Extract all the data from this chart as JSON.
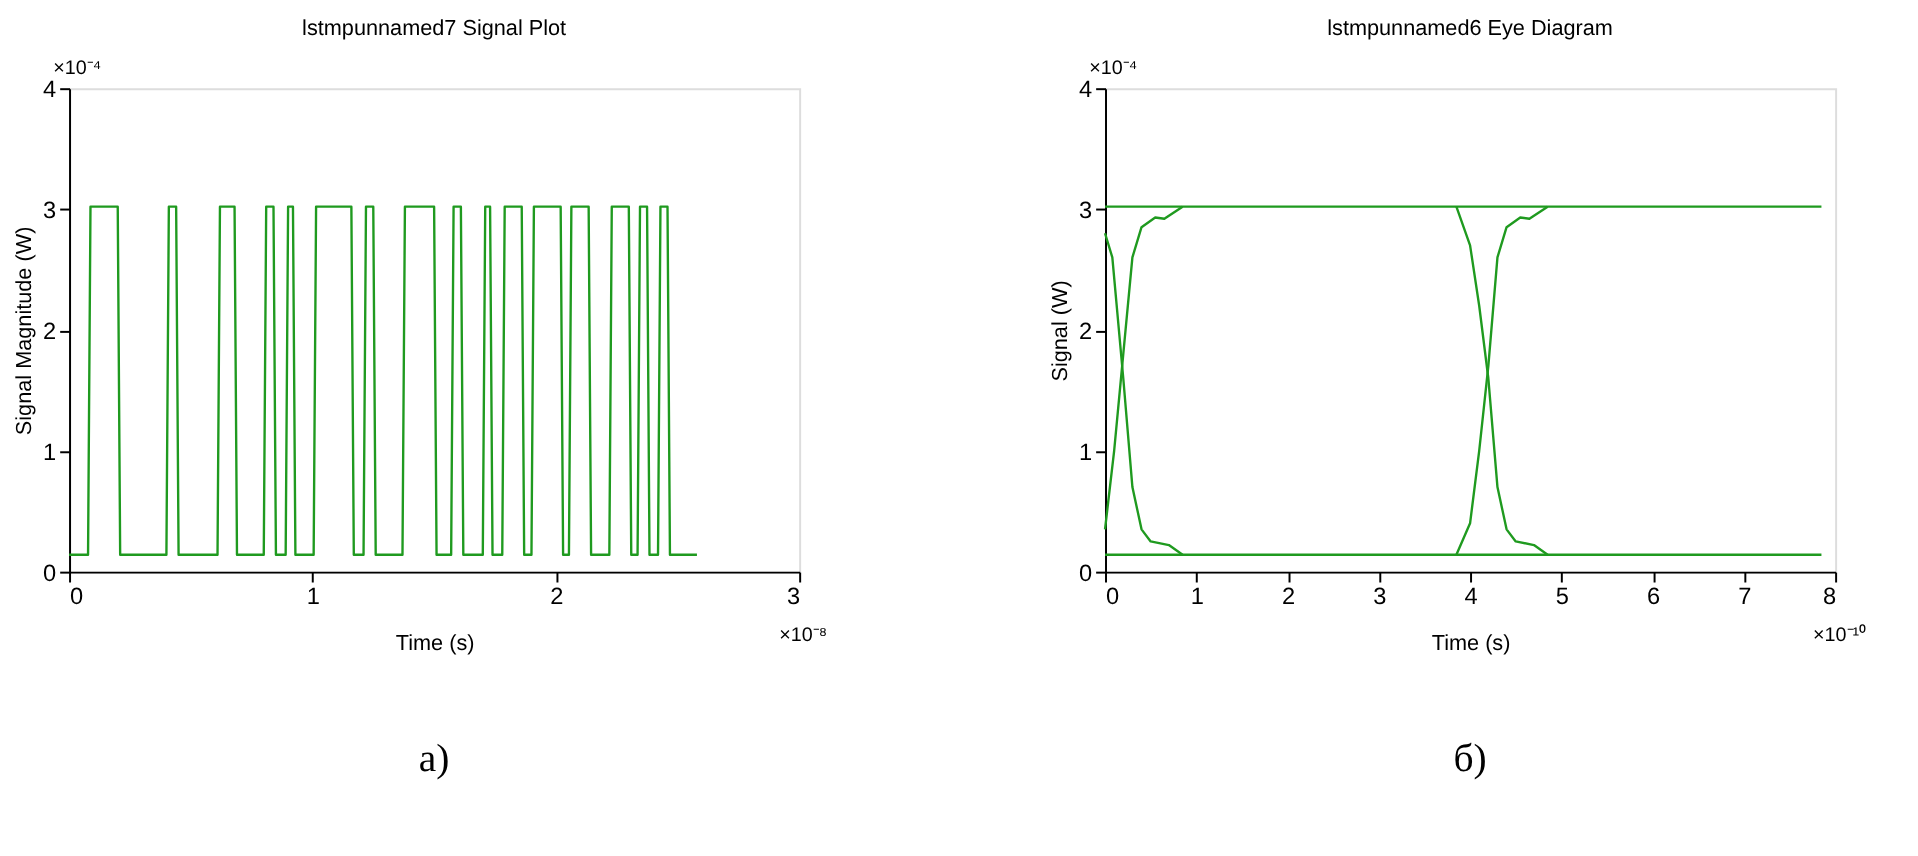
{
  "chart_data": [
    {
      "type": "line",
      "title": "lstmpunnamed7 Signal Plot",
      "xlabel": "Time (s)",
      "ylabel": "Signal Magnitude (W)",
      "xlim": [
        0,
        3
      ],
      "xticks": [
        0,
        1,
        2,
        3
      ],
      "ylim": [
        0,
        4
      ],
      "yticks": [
        0,
        1,
        2,
        3,
        4
      ],
      "grid": false,
      "legend": false,
      "marker": "none",
      "line_style": "solid",
      "annotations": [
        "×10⁻⁴",
        "×10⁻⁸",
        "а)"
      ],
      "series": [
        {
          "color": "#1f9a1f",
          "x": [
            0,
            0.078,
            0.088,
            0.2,
            0.21,
            0.4,
            0.41,
            0.44,
            0.45,
            0.61,
            0.62,
            0.68,
            0.69,
            0.8,
            0.81,
            0.84,
            0.85,
            0.89,
            0.9,
            0.92,
            0.93,
            1.005,
            1.015,
            1.16,
            1.17,
            1.21,
            1.22,
            1.25,
            1.26,
            1.37,
            1.38,
            1.5,
            1.51,
            1.57,
            1.58,
            1.61,
            1.62,
            1.7,
            1.71,
            1.73,
            1.74,
            1.78,
            1.79,
            1.86,
            1.87,
            1.9,
            1.91,
            2.02,
            2.03,
            2.054,
            2.064,
            2.135,
            2.145,
            2.22,
            2.23,
            2.3,
            2.31,
            2.336,
            2.346,
            2.375,
            2.385,
            2.42,
            2.43,
            2.459,
            2.469,
            2.58
          ],
          "values": [
            0.14,
            0.14,
            3.02,
            3.02,
            0.14,
            0.14,
            3.02,
            3.02,
            0.14,
            0.14,
            3.02,
            3.02,
            0.14,
            0.14,
            3.02,
            3.02,
            0.14,
            0.14,
            3.02,
            3.02,
            0.14,
            0.14,
            3.02,
            3.02,
            0.14,
            0.14,
            3.02,
            3.02,
            0.14,
            0.14,
            3.02,
            3.02,
            0.14,
            0.14,
            3.02,
            3.02,
            0.14,
            0.14,
            3.02,
            3.02,
            0.14,
            0.14,
            3.02,
            3.02,
            0.14,
            0.14,
            3.02,
            3.02,
            0.14,
            0.14,
            3.02,
            3.02,
            0.14,
            0.14,
            3.02,
            3.02,
            0.14,
            0.14,
            3.02,
            3.02,
            0.14,
            0.14,
            3.02,
            3.02,
            0.14,
            0.14
          ]
        }
      ]
    },
    {
      "type": "line",
      "title": "lstmpunnamed6 Eye Diagram",
      "xlabel": "Time (s)",
      "ylabel": "Signal (W)",
      "xlim": [
        0,
        8
      ],
      "xticks": [
        0,
        1,
        2,
        3,
        4,
        5,
        6,
        7,
        8
      ],
      "ylim": [
        0,
        4
      ],
      "yticks": [
        0,
        1,
        2,
        3,
        4
      ],
      "grid": false,
      "legend": false,
      "marker": "none",
      "line_style": "solid",
      "annotations": [
        "×10⁻⁴",
        "×10⁻¹⁰",
        "б)"
      ],
      "series": [
        {
          "color": "#1f9a1f",
          "x": [
            0,
            7.85
          ],
          "values": [
            3.02,
            3.02
          ]
        },
        {
          "color": "#1f9a1f",
          "x": [
            0,
            7.85
          ],
          "values": [
            0.14,
            0.14
          ]
        },
        {
          "color": "#1f9a1f",
          "x": [
            0,
            0.08,
            0.2,
            0.3,
            0.4,
            0.5,
            0.7,
            0.85
          ],
          "values": [
            2.8,
            2.6,
            1.6,
            0.7,
            0.35,
            0.25,
            0.22,
            0.14
          ]
        },
        {
          "color": "#1f9a1f",
          "x": [
            0,
            0.1,
            0.2,
            0.3,
            0.4,
            0.55,
            0.65,
            0.85
          ],
          "values": [
            0.35,
            1.0,
            1.8,
            2.6,
            2.85,
            2.93,
            2.92,
            3.02
          ]
        },
        {
          "color": "#1f9a1f",
          "x": [
            3.85,
            4.0,
            4.1,
            4.2,
            4.3,
            4.4,
            4.5,
            4.7,
            4.85
          ],
          "values": [
            3.02,
            2.7,
            2.2,
            1.6,
            0.7,
            0.35,
            0.25,
            0.22,
            0.14
          ]
        },
        {
          "color": "#1f9a1f",
          "x": [
            3.85,
            4.0,
            4.1,
            4.2,
            4.3,
            4.4,
            4.55,
            4.65,
            4.85
          ],
          "values": [
            0.14,
            0.4,
            1.0,
            1.7,
            2.6,
            2.85,
            2.93,
            2.92,
            3.02
          ]
        }
      ]
    }
  ]
}
